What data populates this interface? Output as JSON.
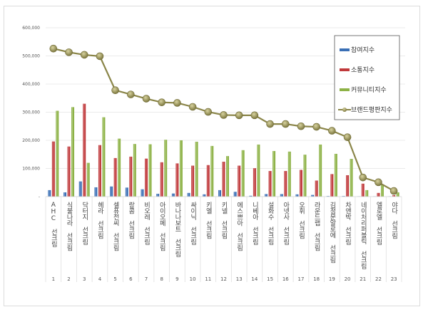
{
  "chart_data": {
    "type": "bar",
    "title": "",
    "xlabel": "",
    "ylabel": "",
    "ylim": [
      0,
      600000
    ],
    "yticks": [
      "-",
      "100,000",
      "200,000",
      "300,000",
      "400,000",
      "500,000",
      "600,000"
    ],
    "grid": true,
    "legend_position": "top-right",
    "categories": [
      "AHC 선크림",
      "식물나라 선크림",
      "닥터지 선크림",
      "헤라 선크림",
      "셀퓨전씨 선크림",
      "랑콤 선크림",
      "비오레 선크림",
      "아이오페 선크림",
      "바나나보트 선크림",
      "싸이닉 선크림",
      "키엘 선크림",
      "키넬 선크림",
      "에스쁘아 선크림",
      "니베아 선크림",
      "설화수 선크림",
      "아넷사 선크림",
      "오휘 선크림",
      "라운드랩 선크림",
      "김정문알로에 선크림",
      "차앤박 선크림",
      "네이처리퍼블릭 선크림",
      "엘로엘 선크림",
      "야다 선크림"
    ],
    "ranks": [
      "1",
      "2",
      "3",
      "4",
      "5",
      "6",
      "7",
      "8",
      "9",
      "10",
      "11",
      "12",
      "13",
      "14",
      "15",
      "16",
      "17",
      "18",
      "19",
      "20",
      "21",
      "22",
      "23"
    ],
    "series": [
      {
        "name": "참여지수",
        "type": "bar",
        "color": "#3a6fb5",
        "values": [
          23000,
          15000,
          54000,
          33000,
          36000,
          32000,
          26000,
          10000,
          11000,
          13000,
          8000,
          23000,
          17000,
          3000,
          9000,
          9000,
          8000,
          6000,
          2000,
          2000,
          1000,
          1000,
          1000
        ]
      },
      {
        "name": "소통지수",
        "type": "bar",
        "color": "#c0393b",
        "values": [
          196000,
          178000,
          330000,
          183000,
          137000,
          142000,
          135000,
          122000,
          118000,
          110000,
          112000,
          124000,
          110000,
          101000,
          91000,
          91000,
          95000,
          57000,
          80000,
          76000,
          46000,
          13000,
          5000
        ]
      },
      {
        "name": "커뮤니티지수",
        "type": "bar",
        "color": "#8db246",
        "values": [
          305000,
          318000,
          120000,
          282000,
          206000,
          187000,
          186000,
          202000,
          200000,
          195000,
          180000,
          144000,
          165000,
          185000,
          162000,
          160000,
          149000,
          185000,
          152000,
          134000,
          23000,
          42000,
          15000
        ]
      },
      {
        "name": "브랜드평판지수",
        "type": "line",
        "color": "#8a8548",
        "values": [
          526000,
          513000,
          504000,
          499000,
          378000,
          363000,
          348000,
          335000,
          333000,
          319000,
          301000,
          290000,
          289000,
          289000,
          258000,
          258000,
          250000,
          248000,
          234000,
          211000,
          68000,
          51000,
          20000
        ]
      }
    ]
  }
}
